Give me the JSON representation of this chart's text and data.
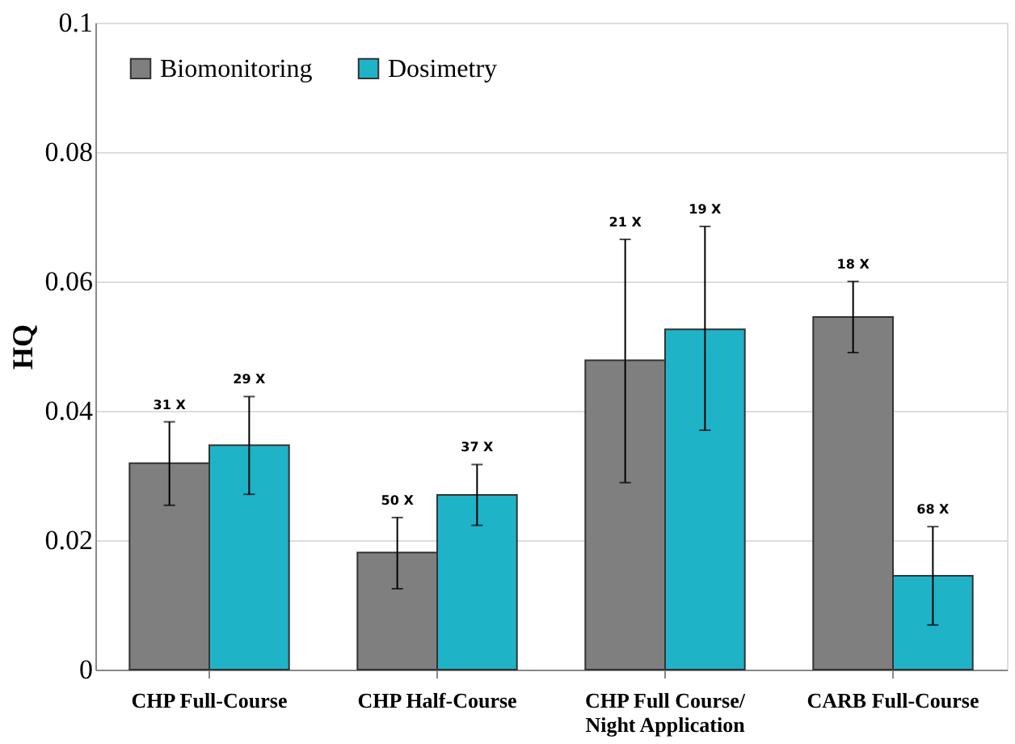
{
  "chart_data": {
    "type": "bar",
    "ylabel": "HQ",
    "categories": [
      "CHP Full-Course",
      "CHP Half-Course",
      "CHP Full Course/\nNight Application",
      "CARB Full-Course"
    ],
    "series": [
      {
        "name": "Biomonitoring",
        "color": "#7f7f7f",
        "values": [
          0.0319,
          0.0181,
          0.0478,
          0.0545
        ],
        "errors": [
          [
            0.0254,
            0.0383
          ],
          [
            0.0125,
            0.0235
          ],
          [
            0.0289,
            0.0665
          ],
          [
            0.049,
            0.06
          ]
        ]
      },
      {
        "name": "Dosimetry",
        "color": "#1fb3c8",
        "values": [
          0.0347,
          0.027,
          0.0526,
          0.0145
        ],
        "errors": [
          [
            0.0271,
            0.0422
          ],
          [
            0.0223,
            0.0317
          ],
          [
            0.037,
            0.0685
          ],
          [
            0.0069,
            0.0221
          ]
        ]
      }
    ],
    "annotations": [
      "31 X",
      "50 X",
      "21 X",
      "18 X",
      "29 X",
      "37 X",
      "19 X",
      "68 X"
    ],
    "ylim": [
      0,
      0.1
    ],
    "yticks": [
      0,
      0.02,
      0.04,
      0.06,
      0.08,
      0.1
    ],
    "grid": "y",
    "legend": "top left"
  }
}
